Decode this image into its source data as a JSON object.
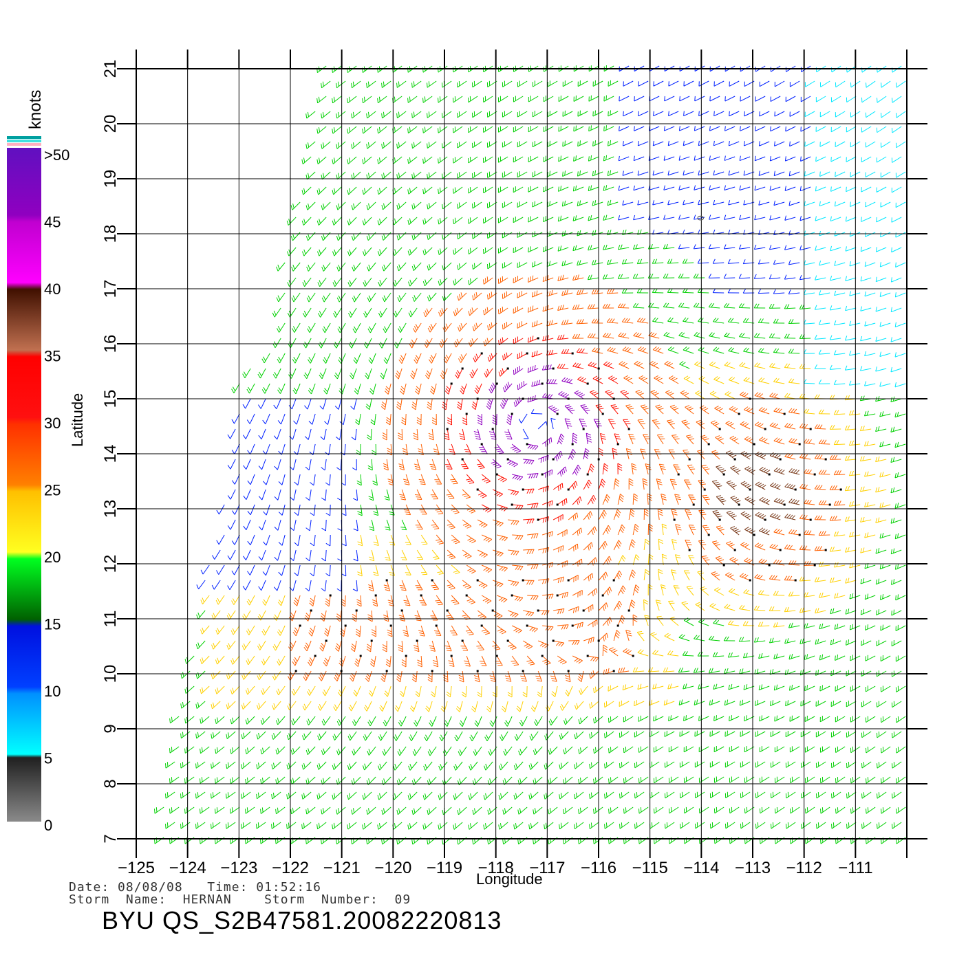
{
  "map": {
    "x_axis_title": "Longitude",
    "y_axis_title": "Latitude",
    "lon_ticks": [
      "−125",
      "−124",
      "−123",
      "−122",
      "−121",
      "−120",
      "−119",
      "−118",
      "−117",
      "−116",
      "−115",
      "−114",
      "−113",
      "−112",
      "−111"
    ],
    "lat_ticks": [
      "7",
      "8",
      "9",
      "10",
      "11",
      "12",
      "13",
      "14",
      "15",
      "16",
      "17",
      "18",
      "19",
      "20",
      "21"
    ],
    "lon_range": [
      -125,
      -110
    ],
    "lat_range": [
      7,
      21
    ],
    "storm_center": {
      "lon": -117.2,
      "lat": 14.5
    },
    "secondary_feature_center": {
      "lon": -112.9,
      "lat": 13.3
    },
    "field_marker": "0",
    "vector_type": "wind barbs"
  },
  "legend": {
    "title": "knots",
    "labels": [
      ">50",
      "45",
      "40",
      "35",
      "30",
      "25",
      "20",
      "15",
      "10",
      "5",
      "0"
    ],
    "colors": {
      "0-5": "#808080",
      "5-10": "#00e8ff",
      "10-15": "#0020ff",
      "15-20": "#00d000",
      "20-25": "#ffd000",
      "25-30": "#ff6000",
      "30-35": "#ff1000",
      "35-40": "#7a3a1a",
      "40-45": "#ff10ff",
      "45-50": "#9000c0"
    }
  },
  "footer": {
    "date_line": "Date: 08/08/08   Time: 01:52:16",
    "storm_line": "Storm  Name:  HERNAN    Storm  Number:  09",
    "product_id": "BYU  QS_S2B47581.20082220813"
  }
}
